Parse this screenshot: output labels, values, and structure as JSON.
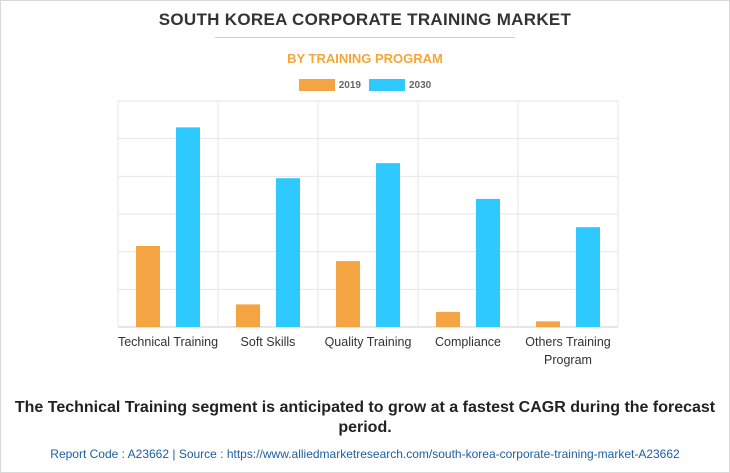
{
  "header": {
    "title": "SOUTH KOREA CORPORATE TRAINING MARKET",
    "subtitle": "BY TRAINING PROGRAM"
  },
  "legend": [
    {
      "label": "2019",
      "color": "#f4a442"
    },
    {
      "label": "2030",
      "color": "#2ec9ff"
    }
  ],
  "chart_data": {
    "type": "bar",
    "title": "SOUTH KOREA CORPORATE TRAINING MARKET",
    "subtitle": "BY TRAINING PROGRAM",
    "xlabel": "",
    "ylabel": "",
    "categories": [
      "Technical Training",
      "Soft Skills",
      "Quality Training",
      "Compliance",
      "Others Training Program"
    ],
    "category_lines": [
      [
        "Technical Training"
      ],
      [
        "Soft Skills"
      ],
      [
        "Quality Training"
      ],
      [
        "Compliance"
      ],
      [
        "Others Training",
        "Program"
      ]
    ],
    "series": [
      {
        "name": "2019",
        "color": "#f4a442",
        "values": [
          21.5,
          6.0,
          17.5,
          4.0,
          1.5
        ]
      },
      {
        "name": "2030",
        "color": "#2ec9ff",
        "values": [
          53.0,
          39.5,
          43.5,
          34.0,
          26.5
        ]
      }
    ],
    "ylim": [
      0,
      60
    ],
    "y_tick_step": 10,
    "y_tick_labels_visible": false,
    "grid": true,
    "legend_position": "top-center"
  },
  "caption": "The Technical Training segment is anticipated to grow at a fastest CAGR during the forecast period.",
  "footer": "Report Code : A23662  |  Source : https://www.alliedmarketresearch.com/south-korea-corporate-training-market-A23662"
}
